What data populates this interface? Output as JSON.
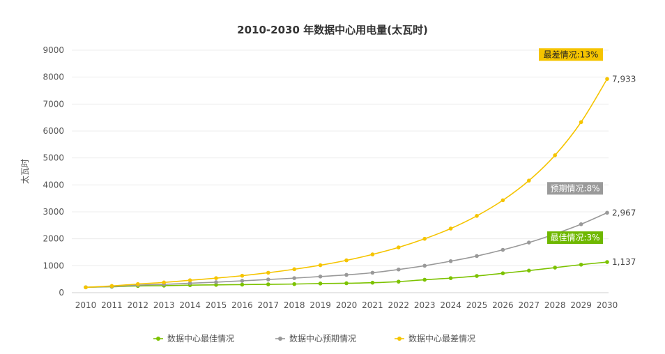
{
  "chart_data": {
    "type": "line",
    "title": "2010-2030 年数据中心用电量(太瓦时)",
    "ylabel": "太瓦时",
    "xlabel": "",
    "ylim": [
      0,
      9000
    ],
    "yticks": [
      0,
      1000,
      2000,
      3000,
      4000,
      5000,
      6000,
      7000,
      8000,
      9000
    ],
    "grid": true,
    "legend_position": "bottom",
    "categories": [
      "2010",
      "2011",
      "2012",
      "2013",
      "2014",
      "2015",
      "2016",
      "2017",
      "2018",
      "2019",
      "2020",
      "2021",
      "2022",
      "2023",
      "2024",
      "2025",
      "2026",
      "2027",
      "2028",
      "2029",
      "2030"
    ],
    "series": [
      {
        "name": "数据中心最佳情况",
        "color": "#7cc200",
        "values": [
          200,
          220,
          250,
          260,
          280,
          290,
          300,
          310,
          320,
          340,
          350,
          370,
          410,
          480,
          540,
          620,
          720,
          820,
          930,
          1040,
          1137
        ],
        "end_label": "1,137",
        "callout": "最佳情况:3%",
        "callout_color": "#6fb800",
        "callout_text_color": "#ffffff"
      },
      {
        "name": "数据中心预期情况",
        "color": "#999999",
        "values": [
          200,
          230,
          280,
          310,
          350,
          390,
          440,
          490,
          540,
          600,
          660,
          740,
          860,
          1000,
          1170,
          1360,
          1590,
          1860,
          2180,
          2540,
          2967
        ],
        "end_label": "2,967",
        "callout": "预期情况:8%",
        "callout_color": "#9a9a9a",
        "callout_text_color": "#ffffff"
      },
      {
        "name": "数据中心最差情况",
        "color": "#f5c400",
        "values": [
          200,
          250,
          320,
          380,
          460,
          540,
          630,
          740,
          870,
          1020,
          1200,
          1420,
          1680,
          2000,
          2380,
          2850,
          3430,
          4160,
          5100,
          6330,
          7933
        ],
        "end_label": "7,933",
        "callout": "最差情况:13%",
        "callout_color": "#f5c400",
        "callout_text_color": "#222222"
      }
    ]
  }
}
